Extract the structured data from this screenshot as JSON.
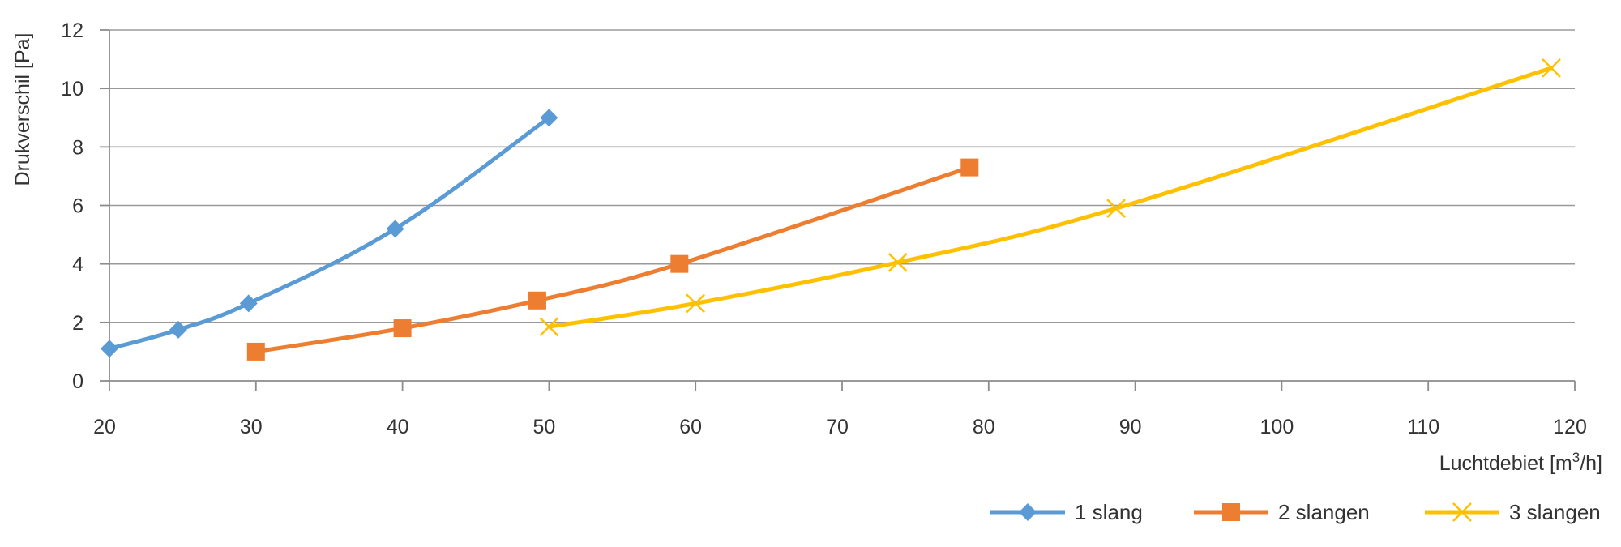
{
  "chart_data": {
    "type": "line",
    "title": "",
    "xlabel": "Luchtdebiet [m³/h]",
    "ylabel": "Drukverschil [Pa]",
    "xlim": [
      20,
      120
    ],
    "ylim": [
      0,
      12
    ],
    "x_ticks": [
      20,
      30,
      40,
      50,
      60,
      70,
      80,
      90,
      100,
      110,
      120
    ],
    "y_ticks": [
      0,
      2,
      4,
      6,
      8,
      10,
      12
    ],
    "grid": "horizontal",
    "legend_position": "bottom-right",
    "series": [
      {
        "name": "1 slang",
        "color": "#5b9bd5",
        "marker": "diamond",
        "points": [
          [
            20,
            1.1
          ],
          [
            24.7,
            1.75
          ],
          [
            29.5,
            2.65
          ],
          [
            39.5,
            5.2
          ],
          [
            50,
            9.0
          ]
        ]
      },
      {
        "name": "2 slangen",
        "color": "#ed7d31",
        "marker": "square",
        "points": [
          [
            30,
            1.0
          ],
          [
            40,
            1.8
          ],
          [
            49.2,
            2.75
          ],
          [
            58.9,
            4.0
          ],
          [
            78.7,
            7.3
          ]
        ]
      },
      {
        "name": "3 slangen",
        "color": "#ffc000",
        "marker": "x",
        "points": [
          [
            50,
            1.85
          ],
          [
            60,
            2.65
          ],
          [
            73.8,
            4.05
          ],
          [
            88.7,
            5.9
          ],
          [
            118.4,
            10.7
          ]
        ]
      }
    ]
  }
}
